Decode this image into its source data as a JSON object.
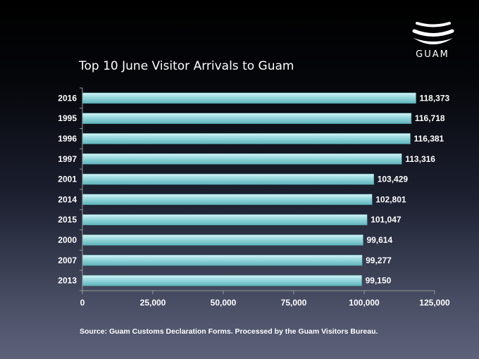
{
  "logo": {
    "text": "GUAM"
  },
  "chart_data": {
    "type": "bar",
    "orientation": "horizontal",
    "title": "Top 10 June Visitor Arrivals to Guam",
    "categories": [
      "2016",
      "1995",
      "1996",
      "1997",
      "2001",
      "2014",
      "2015",
      "2000",
      "2007",
      "2013"
    ],
    "values": [
      118373,
      116718,
      116381,
      113316,
      103429,
      102801,
      101047,
      99614,
      99277,
      99150
    ],
    "value_labels": [
      "118,373",
      "116,718",
      "116,381",
      "113,316",
      "103,429",
      "102,801",
      "101,047",
      "99,614",
      "99,277",
      "99,150"
    ],
    "xlim": [
      0,
      125000
    ],
    "xticks": [
      0,
      25000,
      50000,
      75000,
      100000,
      125000
    ],
    "xtick_labels": [
      "0",
      "25,000",
      "50,000",
      "75,000",
      "100,000",
      "125,000"
    ],
    "xlabel": "",
    "ylabel": "",
    "grid": false,
    "bar_color": "#8fd6dc"
  },
  "source": "Source: Guam Customs Declaration Forms. Processed by the Guam Visitors Bureau."
}
